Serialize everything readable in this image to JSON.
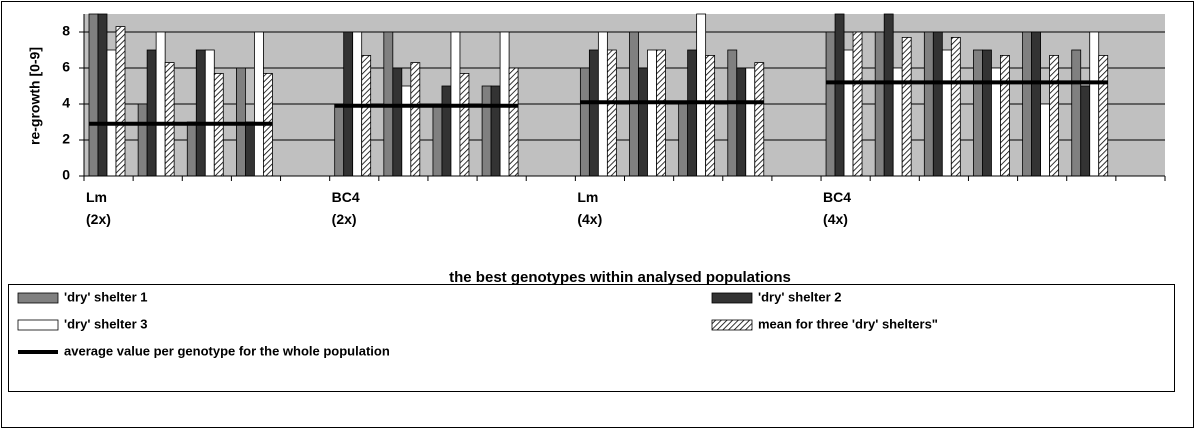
{
  "chart_data": {
    "type": "bar",
    "ylabel": "re-growth [0-9]",
    "xlabel": "the best genotypes within analysed populations",
    "categories": [
      "Lm (2x)",
      null,
      null,
      null,
      null,
      "BC4 (2x)",
      null,
      null,
      null,
      null,
      "Lm (4x)",
      null,
      null,
      null,
      null,
      "BC4 (4x)",
      null,
      null,
      null,
      null,
      null,
      null
    ],
    "series": [
      {
        "name": "'dry' shelter 1",
        "color": "#808080",
        "values": [
          9,
          4,
          3,
          6,
          null,
          4,
          8,
          4,
          5,
          null,
          6,
          8,
          4,
          7,
          null,
          8,
          8,
          8,
          7,
          8,
          7,
          null
        ]
      },
      {
        "name": "'dry' shelter 2",
        "color": "#333333",
        "values": [
          9,
          7,
          7,
          3,
          null,
          8,
          6,
          5,
          5,
          null,
          7,
          6,
          7,
          6,
          null,
          9,
          9,
          8,
          7,
          8,
          5,
          null
        ]
      },
      {
        "name": "'dry' shelter 3",
        "color": "#ffffff",
        "values": [
          7,
          8,
          7,
          8,
          null,
          8,
          5,
          8,
          8,
          null,
          8,
          7,
          9,
          6,
          null,
          7,
          6,
          7,
          6,
          4,
          8,
          null
        ]
      },
      {
        "name": "mean for three 'dry' shelters\"",
        "color": "#000000",
        "pattern": "hatch",
        "values": [
          8.3,
          6.3,
          5.7,
          5.7,
          null,
          6.7,
          6.3,
          5.7,
          6,
          null,
          7,
          7,
          6.7,
          6.3,
          null,
          8,
          7.7,
          7.7,
          6.7,
          6.7,
          6.7,
          null
        ]
      }
    ],
    "average_line": {
      "name": "average value per genotype for the whole population",
      "color": "#000000",
      "values": [
        2.9,
        3.9,
        4.1,
        5.2
      ]
    },
    "ylim": [
      0,
      9
    ],
    "yticks": [
      0,
      2,
      4,
      6,
      8
    ],
    "grid": true,
    "plot_background": "#c0c0c0",
    "legend": "bottom"
  }
}
